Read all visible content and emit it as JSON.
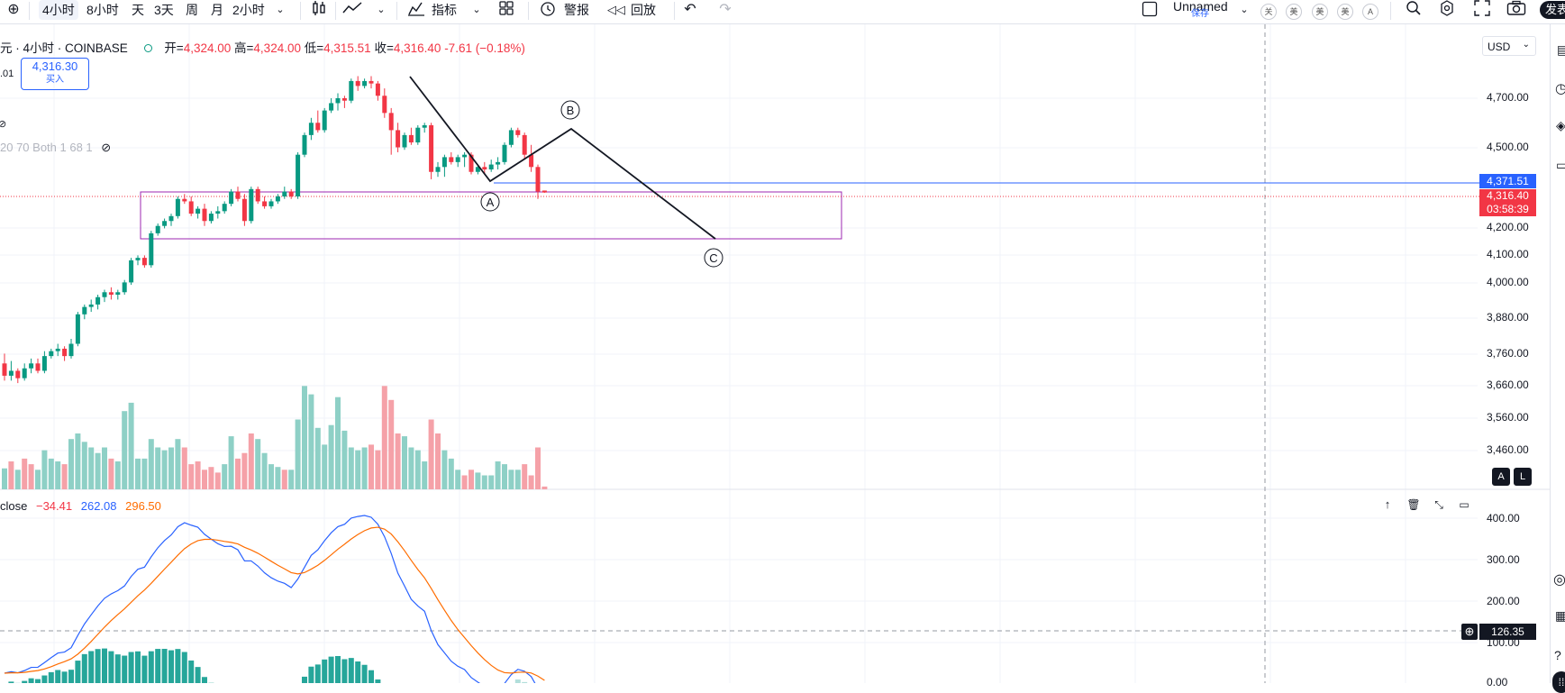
{
  "toolbar": {
    "intervals": [
      "4小时",
      "8小时",
      "天",
      "3天",
      "周",
      "月",
      "2小时"
    ],
    "indicators_label": "指标",
    "alert_label": "警报",
    "replay_label": "回放",
    "layout_name": "Unnamed",
    "save_label": "保存",
    "session_badges": [
      "关",
      "美",
      "美",
      "美",
      "A"
    ],
    "publish_label": "发表"
  },
  "legend": {
    "symbol": "元 · 4小时 · COINBASE",
    "open_label": "开=",
    "open": "4,324.00",
    "high_label": "高=",
    "high": "4,324.00",
    "low_label": "低=",
    "low": "4,315.51",
    "close_label": "收=",
    "close": "4,316.40",
    "change": "-7.61 (−0.18%)",
    "left_stub": ".01",
    "indicator_stub": "20 70 Both 1 68 1"
  },
  "buy": {
    "price": "4,316.30",
    "label": "买入"
  },
  "currency": "USD",
  "price_axis": [
    "4,700.00",
    "4,500.00",
    "4,200.00",
    "4,100.00",
    "4,000.00",
    "3,880.00",
    "3,760.00",
    "3,660.00",
    "3,560.00",
    "3,460.00"
  ],
  "tags": {
    "blue_line": "4,371.51",
    "last_price": "4,316.40",
    "countdown": "03:58:39",
    "crosshair": "126.35"
  },
  "wave_labels": [
    "A",
    "B",
    "C"
  ],
  "scale_buttons": [
    "A",
    "L"
  ],
  "macd": {
    "label": "close",
    "v1": "−34.41",
    "v2": "262.08",
    "v3": "296.50",
    "axis": [
      "400.00",
      "300.00",
      "200.00",
      "100.00",
      "0.00"
    ]
  },
  "colors": {
    "up": "#089981",
    "down": "#f23645",
    "vol_up": "#8ed0c6",
    "vol_down": "#f5a1a8",
    "zone": "#9c27b0",
    "line_blue": "#2962ff"
  },
  "candles": [
    [
      3620,
      3660,
      3550,
      3570
    ],
    [
      3570,
      3630,
      3550,
      3590
    ],
    [
      3590,
      3600,
      3540,
      3560
    ],
    [
      3560,
      3620,
      3550,
      3600
    ],
    [
      3600,
      3640,
      3580,
      3620
    ],
    [
      3620,
      3640,
      3580,
      3590
    ],
    [
      3590,
      3670,
      3580,
      3650
    ],
    [
      3650,
      3680,
      3640,
      3670
    ],
    [
      3670,
      3700,
      3650,
      3680
    ],
    [
      3680,
      3690,
      3630,
      3650
    ],
    [
      3650,
      3720,
      3640,
      3700
    ],
    [
      3700,
      3830,
      3690,
      3820
    ],
    [
      3820,
      3860,
      3800,
      3850
    ],
    [
      3850,
      3880,
      3830,
      3860
    ],
    [
      3860,
      3900,
      3840,
      3890
    ],
    [
      3890,
      3920,
      3870,
      3910
    ],
    [
      3910,
      3930,
      3880,
      3900
    ],
    [
      3900,
      3920,
      3880,
      3910
    ],
    [
      3910,
      3960,
      3900,
      3950
    ],
    [
      3950,
      4050,
      3940,
      4040
    ],
    [
      4040,
      4060,
      4020,
      4050
    ],
    [
      4050,
      4060,
      4010,
      4020
    ],
    [
      4020,
      4160,
      4010,
      4150
    ],
    [
      4150,
      4190,
      4140,
      4180
    ],
    [
      4180,
      4210,
      4170,
      4200
    ],
    [
      4200,
      4230,
      4180,
      4220
    ],
    [
      4220,
      4300,
      4210,
      4290
    ],
    [
      4290,
      4310,
      4270,
      4280
    ],
    [
      4280,
      4300,
      4220,
      4230
    ],
    [
      4230,
      4260,
      4210,
      4250
    ],
    [
      4250,
      4270,
      4180,
      4200
    ],
    [
      4200,
      4240,
      4190,
      4230
    ],
    [
      4230,
      4260,
      4210,
      4240
    ],
    [
      4240,
      4280,
      4230,
      4270
    ],
    [
      4270,
      4330,
      4260,
      4320
    ],
    [
      4320,
      4340,
      4280,
      4290
    ],
    [
      4290,
      4310,
      4180,
      4200
    ],
    [
      4200,
      4340,
      4190,
      4330
    ],
    [
      4330,
      4340,
      4270,
      4280
    ],
    [
      4280,
      4300,
      4250,
      4260
    ],
    [
      4260,
      4290,
      4250,
      4280
    ],
    [
      4280,
      4310,
      4270,
      4300
    ],
    [
      4300,
      4340,
      4290,
      4320
    ],
    [
      4320,
      4330,
      4290,
      4300
    ],
    [
      4300,
      4480,
      4290,
      4470
    ],
    [
      4470,
      4560,
      4460,
      4550
    ],
    [
      4550,
      4620,
      4530,
      4600
    ],
    [
      4600,
      4650,
      4560,
      4570
    ],
    [
      4570,
      4660,
      4560,
      4650
    ],
    [
      4650,
      4700,
      4640,
      4680
    ],
    [
      4680,
      4720,
      4650,
      4700
    ],
    [
      4700,
      4710,
      4660,
      4690
    ],
    [
      4690,
      4780,
      4680,
      4770
    ],
    [
      4770,
      4790,
      4730,
      4750
    ],
    [
      4750,
      4780,
      4740,
      4770
    ],
    [
      4770,
      4790,
      4740,
      4760
    ],
    [
      4760,
      4770,
      4690,
      4710
    ],
    [
      4710,
      4740,
      4620,
      4640
    ],
    [
      4640,
      4660,
      4470,
      4570
    ],
    [
      4570,
      4600,
      4480,
      4500
    ],
    [
      4500,
      4560,
      4490,
      4550
    ],
    [
      4550,
      4580,
      4510,
      4520
    ],
    [
      4520,
      4590,
      4510,
      4580
    ],
    [
      4580,
      4600,
      4560,
      4590
    ],
    [
      4590,
      4600,
      4370,
      4400
    ],
    [
      4400,
      4440,
      4380,
      4420
    ],
    [
      4420,
      4470,
      4380,
      4460
    ],
    [
      4460,
      4480,
      4430,
      4440
    ],
    [
      4440,
      4470,
      4420,
      4460
    ],
    [
      4460,
      4480,
      4420,
      4470
    ],
    [
      4470,
      4480,
      4390,
      4400
    ],
    [
      4400,
      4430,
      4390,
      4420
    ],
    [
      4420,
      4440,
      4390,
      4410
    ],
    [
      4410,
      4450,
      4400,
      4430
    ],
    [
      4430,
      4460,
      4410,
      4440
    ],
    [
      4440,
      4520,
      4430,
      4510
    ],
    [
      4510,
      4580,
      4500,
      4570
    ],
    [
      4570,
      4580,
      4540,
      4550
    ],
    [
      4550,
      4560,
      4450,
      4470
    ],
    [
      4470,
      4510,
      4400,
      4420
    ],
    [
      4420,
      4430,
      4290,
      4320
    ],
    [
      4324,
      4324,
      4315,
      4316
    ]
  ],
  "volumes": [
    [
      15,
      1
    ],
    [
      20,
      0
    ],
    [
      14,
      1
    ],
    [
      22,
      0
    ],
    [
      18,
      0
    ],
    [
      14,
      1
    ],
    [
      28,
      1
    ],
    [
      22,
      1
    ],
    [
      20,
      1
    ],
    [
      18,
      0
    ],
    [
      36,
      1
    ],
    [
      40,
      1
    ],
    [
      34,
      1
    ],
    [
      30,
      1
    ],
    [
      26,
      1
    ],
    [
      30,
      1
    ],
    [
      22,
      0
    ],
    [
      20,
      1
    ],
    [
      56,
      1
    ],
    [
      62,
      1
    ],
    [
      22,
      1
    ],
    [
      22,
      1
    ],
    [
      36,
      1
    ],
    [
      30,
      1
    ],
    [
      28,
      1
    ],
    [
      30,
      1
    ],
    [
      36,
      1
    ],
    [
      30,
      0
    ],
    [
      18,
      0
    ],
    [
      20,
      0
    ],
    [
      14,
      0
    ],
    [
      16,
      0
    ],
    [
      12,
      0
    ],
    [
      18,
      1
    ],
    [
      38,
      1
    ],
    [
      22,
      0
    ],
    [
      26,
      0
    ],
    [
      40,
      0
    ],
    [
      36,
      1
    ],
    [
      26,
      1
    ],
    [
      18,
      1
    ],
    [
      16,
      1
    ],
    [
      14,
      0
    ],
    [
      14,
      1
    ],
    [
      50,
      1
    ],
    [
      74,
      1
    ],
    [
      68,
      1
    ],
    [
      44,
      1
    ],
    [
      32,
      1
    ],
    [
      46,
      1
    ],
    [
      66,
      1
    ],
    [
      42,
      1
    ],
    [
      30,
      1
    ],
    [
      28,
      1
    ],
    [
      30,
      1
    ],
    [
      32,
      0
    ],
    [
      28,
      0
    ],
    [
      74,
      0
    ],
    [
      64,
      0
    ],
    [
      40,
      0
    ],
    [
      38,
      1
    ],
    [
      30,
      1
    ],
    [
      28,
      1
    ],
    [
      20,
      1
    ],
    [
      50,
      0
    ],
    [
      40,
      0
    ],
    [
      28,
      1
    ],
    [
      22,
      1
    ],
    [
      14,
      1
    ],
    [
      10,
      0
    ],
    [
      14,
      0
    ],
    [
      12,
      1
    ],
    [
      10,
      1
    ],
    [
      10,
      1
    ],
    [
      20,
      1
    ],
    [
      18,
      1
    ],
    [
      14,
      1
    ],
    [
      14,
      1
    ],
    [
      18,
      0
    ],
    [
      10,
      0
    ],
    [
      30,
      0
    ],
    [
      2,
      0
    ]
  ]
}
